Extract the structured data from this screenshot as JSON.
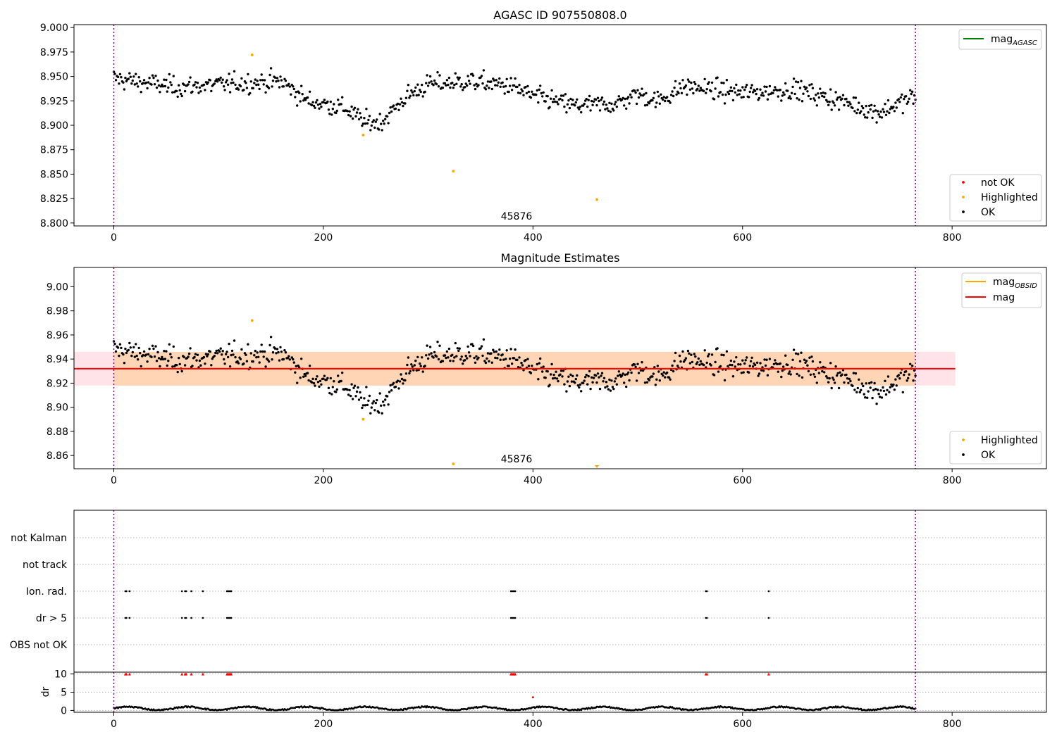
{
  "chart_data": [
    {
      "type": "scatter",
      "title": "AGASC ID 907550808.0",
      "xlim": [
        -38,
        890
      ],
      "ylim": [
        8.797,
        9.003
      ],
      "xticks": [
        "0",
        "200",
        "400",
        "600",
        "800"
      ],
      "xtick_values": [
        0,
        200,
        400,
        600,
        800
      ],
      "yticks": [
        "8.800",
        "8.825",
        "8.850",
        "8.875",
        "8.900",
        "8.925",
        "8.950",
        "8.975",
        "9.000"
      ],
      "ytick_values": [
        8.8,
        8.825,
        8.85,
        8.875,
        8.9,
        8.925,
        8.95,
        8.975,
        9.0
      ],
      "obsid_boundaries": [
        0,
        765
      ],
      "obsid_label": "45876",
      "obsid_label_x": 383,
      "legend_lines": [
        {
          "name": "mag",
          "sub": "AGASC",
          "color": "#008000"
        }
      ],
      "legend_markers": [
        {
          "name": "not OK",
          "color": "#ff0000"
        },
        {
          "name": "Highlighted",
          "color": "#ffa500"
        },
        {
          "name": "OK",
          "color": "#000000"
        }
      ],
      "highlighted": [
        {
          "x": 132,
          "y": 8.972
        },
        {
          "x": 238,
          "y": 8.89
        },
        {
          "x": 324,
          "y": 8.853
        },
        {
          "x": 461,
          "y": 8.824
        }
      ],
      "ok_series_range": [
        0,
        765
      ]
    },
    {
      "type": "scatter",
      "title": "Magnitude Estimates",
      "xlim": [
        -38,
        890
      ],
      "ylim": [
        8.849,
        9.016
      ],
      "xticks": [
        "0",
        "200",
        "400",
        "600",
        "800"
      ],
      "xtick_values": [
        0,
        200,
        400,
        600,
        800
      ],
      "yticks": [
        "8.86",
        "8.88",
        "8.90",
        "8.92",
        "8.94",
        "8.96",
        "8.98",
        "9.00"
      ],
      "ytick_values": [
        8.86,
        8.88,
        8.9,
        8.92,
        8.94,
        8.96,
        8.98,
        9.0
      ],
      "obsid_boundaries": [
        0,
        765
      ],
      "obsid_label": "45876",
      "obsid_label_x": 383,
      "legend_lines": [
        {
          "name": "mag",
          "sub": "OBSID",
          "color": "#ffa500"
        },
        {
          "name": "mag",
          "sub": "",
          "color": "#ff0000"
        }
      ],
      "legend_markers": [
        {
          "name": "Highlighted",
          "color": "#ffa500"
        },
        {
          "name": "OK",
          "color": "#000000"
        }
      ],
      "mag": 8.932,
      "mag_band": [
        8.918,
        8.946
      ],
      "band_x": [
        -38,
        803
      ],
      "obsid_band_x": [
        0,
        765
      ],
      "highlighted": [
        {
          "x": 132,
          "y": 8.972
        },
        {
          "x": 238,
          "y": 8.89
        },
        {
          "x": 324,
          "y": 8.853
        }
      ],
      "highlighted_below": {
        "x": 461
      },
      "ok_series_range": [
        0,
        765
      ]
    },
    {
      "type": "scatter",
      "title": "",
      "xlim": [
        -38,
        890
      ],
      "flag_labels": [
        "not Kalman",
        "not track",
        "Ion. rad.",
        "dr > 5",
        "OBS not OK"
      ],
      "ion_rad_x": [
        11,
        12,
        15,
        65,
        68,
        69,
        74,
        85,
        108,
        109,
        110,
        111,
        112,
        379,
        380,
        381,
        382,
        383,
        565,
        566,
        625
      ],
      "dr_gt5_x": [
        11,
        12,
        15,
        65,
        68,
        69,
        74,
        85,
        108,
        109,
        110,
        111,
        112,
        379,
        380,
        381,
        382,
        383,
        565,
        566,
        625
      ],
      "dr_ylabel": "dr",
      "dr_ylim": [
        -0.5,
        10.5
      ],
      "dr_yticks": [
        "0",
        "5",
        "10"
      ],
      "dr_ytick_values": [
        0,
        5,
        10
      ],
      "dr_clipped_x": [
        11,
        12,
        15,
        65,
        68,
        69,
        74,
        85,
        108,
        109,
        110,
        111,
        112,
        379,
        380,
        381,
        382,
        383,
        565,
        566,
        625
      ],
      "dr_outlier": {
        "x": 400,
        "y": 3.6
      },
      "xticks": [
        "0",
        "200",
        "400",
        "600",
        "800"
      ],
      "xtick_values": [
        0,
        200,
        400,
        600,
        800
      ],
      "obsid_boundaries": [
        0,
        765
      ]
    }
  ]
}
